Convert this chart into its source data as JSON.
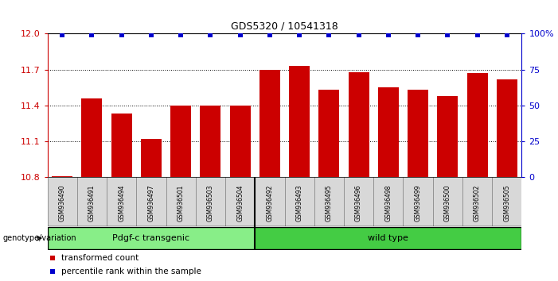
{
  "title": "GDS5320 / 10541318",
  "samples": [
    "GSM936490",
    "GSM936491",
    "GSM936494",
    "GSM936497",
    "GSM936501",
    "GSM936503",
    "GSM936504",
    "GSM936492",
    "GSM936493",
    "GSM936495",
    "GSM936496",
    "GSM936498",
    "GSM936499",
    "GSM936500",
    "GSM936502",
    "GSM936505"
  ],
  "bar_values": [
    10.81,
    11.46,
    11.33,
    11.12,
    11.4,
    11.4,
    11.4,
    11.7,
    11.73,
    11.53,
    11.68,
    11.55,
    11.53,
    11.48,
    11.67,
    11.62
  ],
  "percentile_values": [
    99,
    99,
    99,
    99,
    99,
    99,
    99,
    99,
    99,
    99,
    99,
    99,
    99,
    99,
    99,
    99
  ],
  "bar_color": "#cc0000",
  "percentile_color": "#0000cc",
  "ylim_left": [
    10.8,
    12.0
  ],
  "ylim_right": [
    0,
    100
  ],
  "yticks_left": [
    10.8,
    11.1,
    11.4,
    11.7,
    12.0
  ],
  "yticks_right": [
    0,
    25,
    50,
    75,
    100
  ],
  "ytick_labels_right": [
    "0",
    "25",
    "50",
    "75",
    "100%"
  ],
  "n_transgenic": 7,
  "groups": [
    {
      "label": "Pdgf-c transgenic",
      "color": "#88ee88"
    },
    {
      "label": "wild type",
      "color": "#44cc44"
    }
  ],
  "group_label": "genotype/variation",
  "legend_items": [
    {
      "label": "transformed count",
      "color": "#cc0000"
    },
    {
      "label": "percentile rank within the sample",
      "color": "#0000cc"
    }
  ],
  "background_color": "#ffffff",
  "tick_color_left": "#cc0000",
  "tick_color_right": "#0000cc",
  "bar_bottom": 10.8,
  "bar_width": 0.7,
  "cell_bg": "#d8d8d8",
  "cell_border": "#888888"
}
